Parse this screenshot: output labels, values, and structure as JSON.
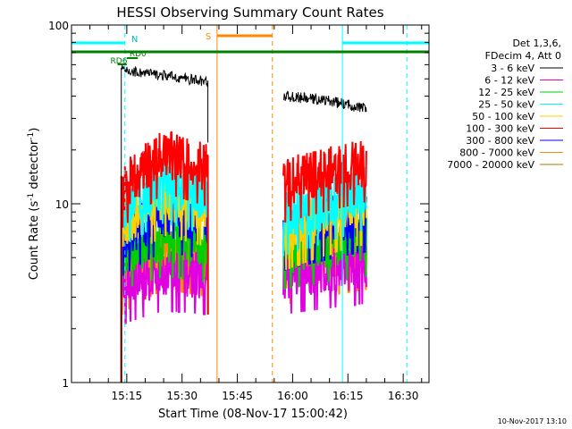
{
  "chart_data": {
    "type": "line",
    "title": "HESSI Observing Summary Count Rates",
    "xlabel": "Start Time (08-Nov-17 15:00:42)",
    "ylabel_main": "Count Rate (s",
    "ylabel_sup1": "-1",
    "ylabel_mid": " detector",
    "ylabel_sup2": "-1",
    "ylabel_end": ")",
    "y_scale": "log",
    "ylim": [
      1,
      100
    ],
    "xlim_minutes": [
      0,
      97
    ],
    "y_ticks": [
      {
        "value": 1,
        "label": "1"
      },
      {
        "value": 10,
        "label": "10"
      },
      {
        "value": 100,
        "label": "100"
      }
    ],
    "x_ticks": [
      {
        "minutes": 15,
        "label": "15:15"
      },
      {
        "minutes": 30,
        "label": "15:30"
      },
      {
        "minutes": 45,
        "label": "15:45"
      },
      {
        "minutes": 60,
        "label": "16:00"
      },
      {
        "minutes": 75,
        "label": "16:15"
      },
      {
        "minutes": 90,
        "label": "16:30"
      }
    ],
    "legend_header": [
      "Det 1,3,6,",
      "FDecim 4, Att 0"
    ],
    "legend_position": "right",
    "footer_date": "10-Nov-2017 13:10",
    "segments": [
      [
        13.5,
        37.0
      ],
      [
        57.5,
        80.0
      ]
    ],
    "series": [
      {
        "name": "3 - 6 keV",
        "color": "#000000",
        "seg1": [
          56,
          52,
          48
        ],
        "seg2": [
          40,
          38,
          34
        ]
      },
      {
        "name": "6 - 12 keV",
        "color": "#e000e0",
        "seg1": [
          3.5,
          4.2,
          4.0
        ],
        "seg2": [
          4.0,
          4.3,
          4.6
        ]
      },
      {
        "name": "12 - 25 keV",
        "color": "#00d000",
        "seg1": [
          5.5,
          6.5,
          6.0
        ],
        "seg2": [
          5.5,
          6.0,
          6.5
        ]
      },
      {
        "name": "25 - 50 keV",
        "color": "#00ffff",
        "seg1": [
          9.5,
          13,
          11
        ],
        "seg2": [
          8.5,
          10,
          12
        ]
      },
      {
        "name": "50 - 100 keV",
        "color": "#ffd000",
        "seg1": [
          7.5,
          11,
          9.5
        ],
        "seg2": [
          7,
          8.5,
          10
        ]
      },
      {
        "name": "100 - 300 keV",
        "color": "#ff0000",
        "seg1": [
          12,
          19,
          16
        ],
        "seg2": [
          13,
          15,
          17
        ]
      },
      {
        "name": "300 - 800 keV",
        "color": "#0000ff",
        "seg1": [
          6.5,
          9,
          8
        ],
        "seg2": [
          7,
          8,
          9
        ]
      },
      {
        "name": "800 - 7000 keV",
        "color": "#ff8800",
        "seg1": [
          4,
          5.5,
          5
        ],
        "seg2": [
          4.5,
          5,
          5.5
        ]
      },
      {
        "name": "7000 - 20000 keV",
        "color": "#aa7700",
        "seg1": [],
        "seg2": []
      }
    ],
    "night_bars": [
      {
        "from": 0,
        "to": 14.5
      },
      {
        "from": 73.5,
        "to": 97
      }
    ],
    "night_marker": {
      "minutes": 15.5,
      "label": "N"
    },
    "saa_bar": {
      "from": 39.5,
      "to": 54.5,
      "label": "S"
    },
    "flag_bars": [
      {
        "from": 0,
        "to": 97,
        "label": ""
      },
      {
        "from": 15,
        "to": 18,
        "label": "RD0"
      },
      {
        "from": 12.5,
        "to": 15,
        "label": "RD6"
      }
    ],
    "vertical_markers": [
      {
        "minutes": 0,
        "color": "#00ffff",
        "style": "solid"
      },
      {
        "minutes": 14.5,
        "color": "#00ffff",
        "style": "dashed"
      },
      {
        "minutes": 39.5,
        "color": "#ff8800",
        "style": "solid"
      },
      {
        "minutes": 54.5,
        "color": "#ff8800",
        "style": "dashed"
      },
      {
        "minutes": 73.5,
        "color": "#00ffff",
        "style": "solid"
      },
      {
        "minutes": 91,
        "color": "#00ffff",
        "style": "dashed"
      }
    ]
  }
}
